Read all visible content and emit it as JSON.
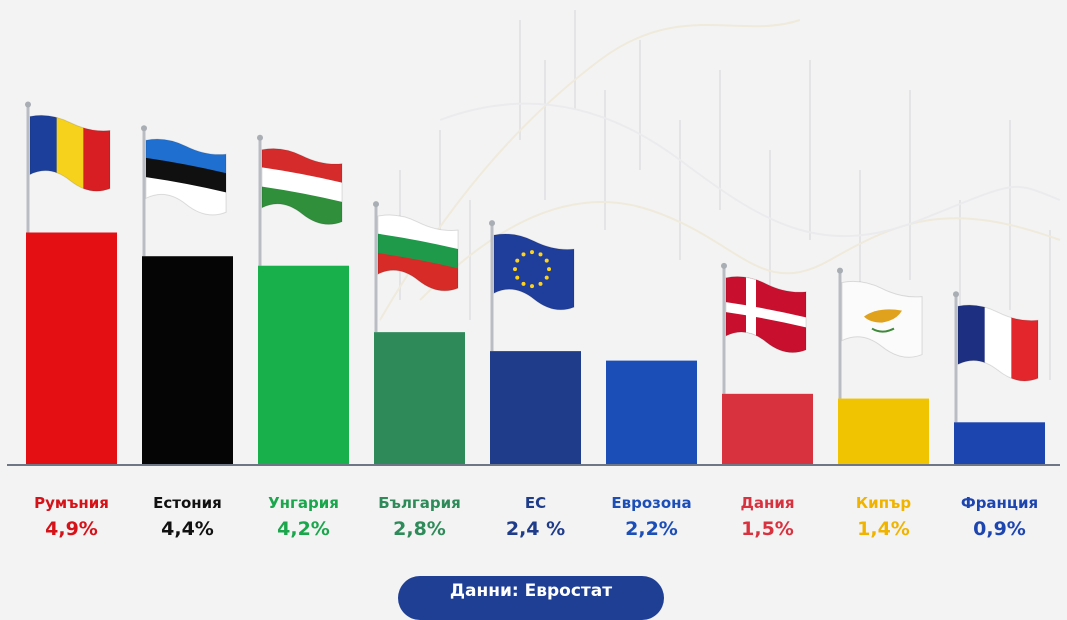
{
  "chart_data": {
    "type": "bar",
    "categories": [
      "Румъния",
      "Естония",
      "Унгария",
      "България",
      "ЕС",
      "Еврозона",
      "Дания",
      "Кипър",
      "Франция"
    ],
    "values": [
      4.9,
      4.4,
      4.2,
      2.8,
      2.4,
      2.2,
      1.5,
      1.4,
      0.9
    ],
    "value_labels": [
      "4,9%",
      "4,4%",
      "4,2%",
      "2,8%",
      "2,4 %",
      "2,2%",
      "1,5%",
      "1,4%",
      "0,9%"
    ],
    "bar_colors": [
      "#e30f13",
      "#050505",
      "#17b04a",
      "#2f8a5a",
      "#1f3c8a",
      "#1c4eb8",
      "#d9323f",
      "#f0c400",
      "#1d45b0"
    ],
    "label_colors": [
      "#d51218",
      "#111111",
      "#1aa64a",
      "#2f8a5a",
      "#1f3c8a",
      "#1c4eb8",
      "#d9323f",
      "#f0b400",
      "#1d45b0"
    ],
    "flags": [
      "romania",
      "estonia",
      "hungary",
      "bulgaria",
      "eu",
      "",
      "denmark",
      "cyprus",
      "france"
    ],
    "ylim": [
      0,
      9.8
    ],
    "title": "",
    "xlabel": "",
    "ylabel": "",
    "grid": false
  },
  "footer": {
    "source_label": "Данни: Евростат"
  }
}
